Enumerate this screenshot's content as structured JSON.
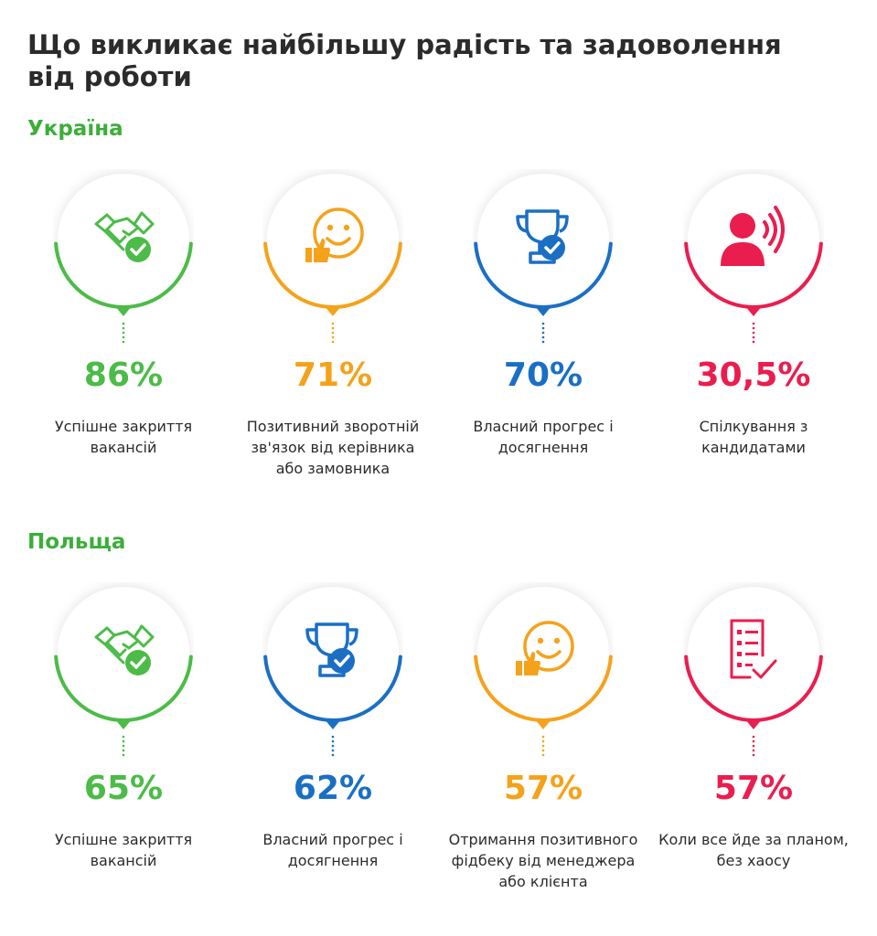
{
  "title": "Що викликає найбільшу радість та задоволення від роботи",
  "colors": {
    "green": "#4cbb48",
    "orange": "#f5a21b",
    "blue": "#1a6fc4",
    "red": "#ea1d4f",
    "heading_green": "#3cae3a"
  },
  "ukraine": {
    "heading": "Україна",
    "items": [
      {
        "value": "86%",
        "label": "Успішне закриття вакансій",
        "color": "#4cbb48",
        "icon": "handshake-check-icon"
      },
      {
        "value": "71%",
        "label": "Позитивний зворотній зв'язок від керівника або замовника",
        "color": "#f5a21b",
        "icon": "smiley-thumbs-up-icon"
      },
      {
        "value": "70%",
        "label": "Власний прогрес і досягнення",
        "color": "#1a6fc4",
        "icon": "trophy-check-icon"
      },
      {
        "value": "30,5%",
        "label": "Спілкування з кандидатами",
        "color": "#ea1d4f",
        "icon": "person-speaking-icon"
      }
    ]
  },
  "poland": {
    "heading": "Польща",
    "items": [
      {
        "value": "65%",
        "label": "Успішне закриття вакансій",
        "color": "#4cbb48",
        "icon": "handshake-check-icon"
      },
      {
        "value": "62%",
        "label": "Власний прогрес і досягнення",
        "color": "#1a6fc4",
        "icon": "trophy-check-icon"
      },
      {
        "value": "57%",
        "label": "Отримання позитивного фідбеку від менеджера або клієнта",
        "color": "#f5a21b",
        "icon": "smiley-thumbs-up-icon"
      },
      {
        "value": "57%",
        "label": "Коли все йде за планом, без хаосу",
        "color": "#ea1d4f",
        "icon": "checklist-icon"
      }
    ]
  }
}
